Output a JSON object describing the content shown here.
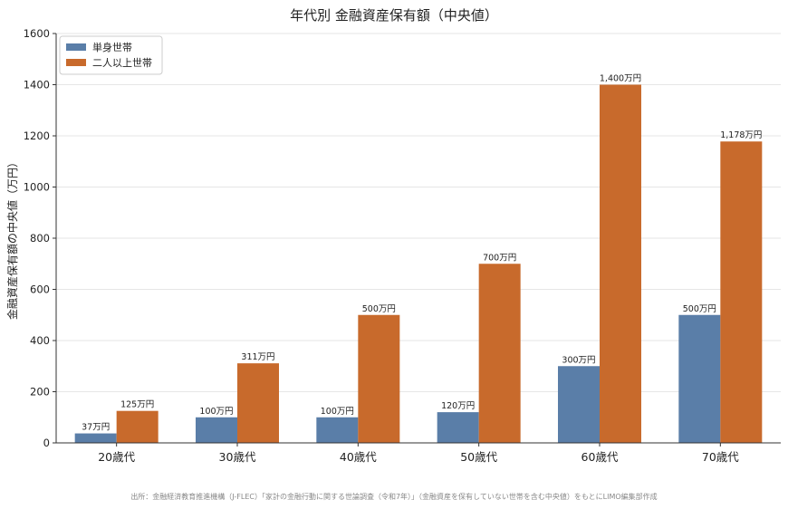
{
  "chart_data": {
    "type": "bar",
    "title": "年代別 金融資産保有額（中央値）",
    "xlabel": "",
    "ylabel": "金融資産保有額の中央値（万円）",
    "categories": [
      "20歳代",
      "30歳代",
      "40歳代",
      "50歳代",
      "60歳代",
      "70歳代"
    ],
    "series": [
      {
        "name": "単身世帯",
        "color": "#5a7ea8",
        "values": [
          37,
          100,
          100,
          120,
          300,
          500
        ],
        "labels": [
          "37万円",
          "100万円",
          "100万円",
          "120万円",
          "300万円",
          "500万円"
        ]
      },
      {
        "name": "二人以上世帯",
        "color": "#c86a2c",
        "values": [
          125,
          311,
          500,
          700,
          1400,
          1178
        ],
        "labels": [
          "125万円",
          "311万円",
          "500万円",
          "700万円",
          "1,400万円",
          "1,178万円"
        ]
      }
    ],
    "ylim": [
      0,
      1600
    ],
    "yticks": [
      0,
      200,
      400,
      600,
      800,
      1000,
      1200,
      1400,
      1600
    ],
    "grid": true,
    "legend_position": "top-left"
  },
  "source": "出所：金融経済教育推進機構（J-FLEC）「家計の金融行動に関する世論調査（令和7年）」（金融資産を保有していない世帯を含む中央値）をもとにLIMO編集部作成"
}
